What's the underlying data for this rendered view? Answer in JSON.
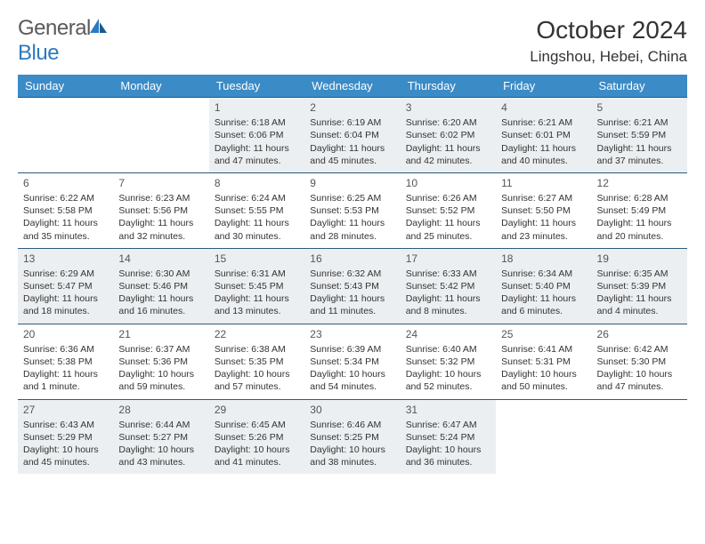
{
  "logo": {
    "text_general": "General",
    "text_blue": "Blue"
  },
  "title": "October 2024",
  "location": "Lingshou, Hebei, China",
  "colors": {
    "header_bg": "#3b8bc7",
    "header_text": "#ffffff",
    "border": "#2c5a7a",
    "shaded": "#eceff1",
    "logo_blue": "#2c7ac0",
    "logo_gray": "#5a5a5a"
  },
  "day_headers": [
    "Sunday",
    "Monday",
    "Tuesday",
    "Wednesday",
    "Thursday",
    "Friday",
    "Saturday"
  ],
  "weeks": [
    [
      null,
      null,
      {
        "n": 1,
        "sr": "6:18 AM",
        "ss": "6:06 PM",
        "dl": "11 hours and 47 minutes."
      },
      {
        "n": 2,
        "sr": "6:19 AM",
        "ss": "6:04 PM",
        "dl": "11 hours and 45 minutes."
      },
      {
        "n": 3,
        "sr": "6:20 AM",
        "ss": "6:02 PM",
        "dl": "11 hours and 42 minutes."
      },
      {
        "n": 4,
        "sr": "6:21 AM",
        "ss": "6:01 PM",
        "dl": "11 hours and 40 minutes."
      },
      {
        "n": 5,
        "sr": "6:21 AM",
        "ss": "5:59 PM",
        "dl": "11 hours and 37 minutes."
      }
    ],
    [
      {
        "n": 6,
        "sr": "6:22 AM",
        "ss": "5:58 PM",
        "dl": "11 hours and 35 minutes."
      },
      {
        "n": 7,
        "sr": "6:23 AM",
        "ss": "5:56 PM",
        "dl": "11 hours and 32 minutes."
      },
      {
        "n": 8,
        "sr": "6:24 AM",
        "ss": "5:55 PM",
        "dl": "11 hours and 30 minutes."
      },
      {
        "n": 9,
        "sr": "6:25 AM",
        "ss": "5:53 PM",
        "dl": "11 hours and 28 minutes."
      },
      {
        "n": 10,
        "sr": "6:26 AM",
        "ss": "5:52 PM",
        "dl": "11 hours and 25 minutes."
      },
      {
        "n": 11,
        "sr": "6:27 AM",
        "ss": "5:50 PM",
        "dl": "11 hours and 23 minutes."
      },
      {
        "n": 12,
        "sr": "6:28 AM",
        "ss": "5:49 PM",
        "dl": "11 hours and 20 minutes."
      }
    ],
    [
      {
        "n": 13,
        "sr": "6:29 AM",
        "ss": "5:47 PM",
        "dl": "11 hours and 18 minutes."
      },
      {
        "n": 14,
        "sr": "6:30 AM",
        "ss": "5:46 PM",
        "dl": "11 hours and 16 minutes."
      },
      {
        "n": 15,
        "sr": "6:31 AM",
        "ss": "5:45 PM",
        "dl": "11 hours and 13 minutes."
      },
      {
        "n": 16,
        "sr": "6:32 AM",
        "ss": "5:43 PM",
        "dl": "11 hours and 11 minutes."
      },
      {
        "n": 17,
        "sr": "6:33 AM",
        "ss": "5:42 PM",
        "dl": "11 hours and 8 minutes."
      },
      {
        "n": 18,
        "sr": "6:34 AM",
        "ss": "5:40 PM",
        "dl": "11 hours and 6 minutes."
      },
      {
        "n": 19,
        "sr": "6:35 AM",
        "ss": "5:39 PM",
        "dl": "11 hours and 4 minutes."
      }
    ],
    [
      {
        "n": 20,
        "sr": "6:36 AM",
        "ss": "5:38 PM",
        "dl": "11 hours and 1 minute."
      },
      {
        "n": 21,
        "sr": "6:37 AM",
        "ss": "5:36 PM",
        "dl": "10 hours and 59 minutes."
      },
      {
        "n": 22,
        "sr": "6:38 AM",
        "ss": "5:35 PM",
        "dl": "10 hours and 57 minutes."
      },
      {
        "n": 23,
        "sr": "6:39 AM",
        "ss": "5:34 PM",
        "dl": "10 hours and 54 minutes."
      },
      {
        "n": 24,
        "sr": "6:40 AM",
        "ss": "5:32 PM",
        "dl": "10 hours and 52 minutes."
      },
      {
        "n": 25,
        "sr": "6:41 AM",
        "ss": "5:31 PM",
        "dl": "10 hours and 50 minutes."
      },
      {
        "n": 26,
        "sr": "6:42 AM",
        "ss": "5:30 PM",
        "dl": "10 hours and 47 minutes."
      }
    ],
    [
      {
        "n": 27,
        "sr": "6:43 AM",
        "ss": "5:29 PM",
        "dl": "10 hours and 45 minutes."
      },
      {
        "n": 28,
        "sr": "6:44 AM",
        "ss": "5:27 PM",
        "dl": "10 hours and 43 minutes."
      },
      {
        "n": 29,
        "sr": "6:45 AM",
        "ss": "5:26 PM",
        "dl": "10 hours and 41 minutes."
      },
      {
        "n": 30,
        "sr": "6:46 AM",
        "ss": "5:25 PM",
        "dl": "10 hours and 38 minutes."
      },
      {
        "n": 31,
        "sr": "6:47 AM",
        "ss": "5:24 PM",
        "dl": "10 hours and 36 minutes."
      },
      null,
      null
    ]
  ],
  "labels": {
    "sunrise": "Sunrise:",
    "sunset": "Sunset:",
    "daylight": "Daylight:"
  }
}
